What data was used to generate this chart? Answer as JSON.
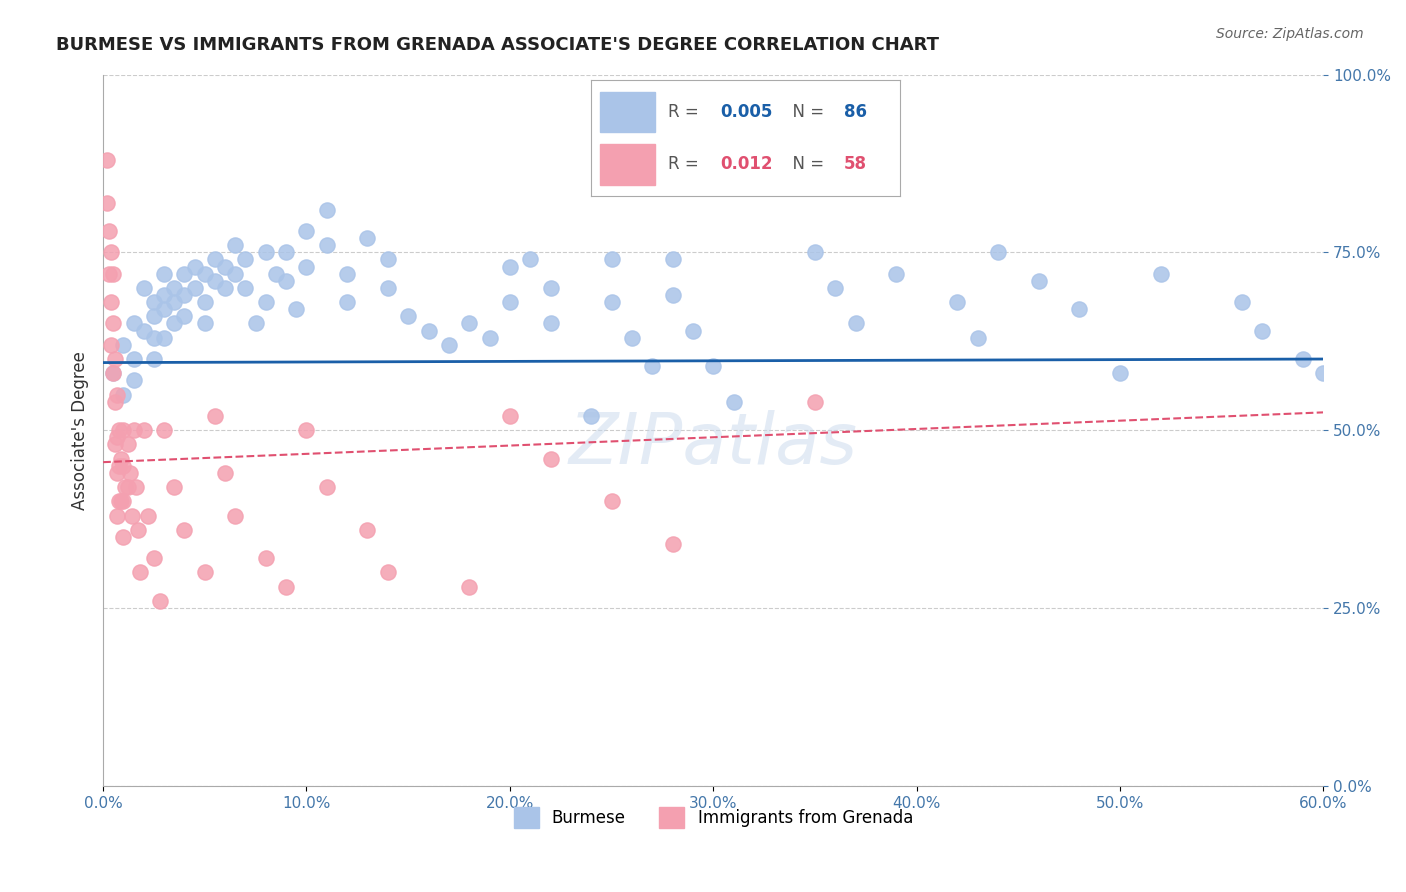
{
  "title": "BURMESE VS IMMIGRANTS FROM GRENADA ASSOCIATE'S DEGREE CORRELATION CHART",
  "source": "Source: ZipAtlas.com",
  "ylabel": "Associate's Degree",
  "xlabel_ticks": [
    "0.0%",
    "10.0%",
    "20.0%",
    "30.0%",
    "40.0%",
    "50.0%",
    "60.0%"
  ],
  "xlabel_vals": [
    0,
    0.1,
    0.2,
    0.3,
    0.4,
    0.5,
    0.6
  ],
  "ytick_labels": [
    "0.0%",
    "25.0%",
    "50.0%",
    "75.0%",
    "100.0%"
  ],
  "ytick_vals": [
    0,
    0.25,
    0.5,
    0.75,
    1.0
  ],
  "xlim": [
    0,
    0.6
  ],
  "ylim": [
    0,
    1.0
  ],
  "legend": {
    "blue_r": "0.005",
    "blue_n": "86",
    "pink_r": "0.012",
    "pink_n": "58"
  },
  "blue_scatter_x": [
    0.005,
    0.01,
    0.01,
    0.015,
    0.015,
    0.015,
    0.02,
    0.02,
    0.025,
    0.025,
    0.025,
    0.025,
    0.03,
    0.03,
    0.03,
    0.03,
    0.035,
    0.035,
    0.035,
    0.04,
    0.04,
    0.04,
    0.045,
    0.045,
    0.05,
    0.05,
    0.05,
    0.055,
    0.055,
    0.06,
    0.06,
    0.065,
    0.065,
    0.07,
    0.07,
    0.075,
    0.08,
    0.08,
    0.085,
    0.09,
    0.09,
    0.095,
    0.1,
    0.1,
    0.11,
    0.11,
    0.12,
    0.12,
    0.13,
    0.14,
    0.14,
    0.15,
    0.16,
    0.17,
    0.18,
    0.19,
    0.2,
    0.2,
    0.21,
    0.22,
    0.22,
    0.24,
    0.25,
    0.25,
    0.26,
    0.27,
    0.28,
    0.28,
    0.29,
    0.3,
    0.31,
    0.35,
    0.36,
    0.37,
    0.39,
    0.42,
    0.43,
    0.44,
    0.46,
    0.48,
    0.5,
    0.52,
    0.56,
    0.57,
    0.59,
    0.6
  ],
  "blue_scatter_y": [
    0.58,
    0.62,
    0.55,
    0.65,
    0.6,
    0.57,
    0.7,
    0.64,
    0.68,
    0.66,
    0.63,
    0.6,
    0.72,
    0.69,
    0.67,
    0.63,
    0.7,
    0.68,
    0.65,
    0.72,
    0.69,
    0.66,
    0.73,
    0.7,
    0.72,
    0.68,
    0.65,
    0.74,
    0.71,
    0.73,
    0.7,
    0.76,
    0.72,
    0.74,
    0.7,
    0.65,
    0.75,
    0.68,
    0.72,
    0.75,
    0.71,
    0.67,
    0.78,
    0.73,
    0.81,
    0.76,
    0.72,
    0.68,
    0.77,
    0.74,
    0.7,
    0.66,
    0.64,
    0.62,
    0.65,
    0.63,
    0.73,
    0.68,
    0.74,
    0.7,
    0.65,
    0.52,
    0.74,
    0.68,
    0.63,
    0.59,
    0.74,
    0.69,
    0.64,
    0.59,
    0.54,
    0.75,
    0.7,
    0.65,
    0.72,
    0.68,
    0.63,
    0.75,
    0.71,
    0.67,
    0.58,
    0.72,
    0.68,
    0.64,
    0.6,
    0.58
  ],
  "pink_scatter_x": [
    0.002,
    0.002,
    0.003,
    0.003,
    0.004,
    0.004,
    0.004,
    0.005,
    0.005,
    0.005,
    0.006,
    0.006,
    0.006,
    0.007,
    0.007,
    0.007,
    0.007,
    0.008,
    0.008,
    0.008,
    0.009,
    0.009,
    0.01,
    0.01,
    0.01,
    0.01,
    0.011,
    0.012,
    0.012,
    0.013,
    0.014,
    0.015,
    0.016,
    0.017,
    0.018,
    0.02,
    0.022,
    0.025,
    0.028,
    0.03,
    0.035,
    0.04,
    0.05,
    0.055,
    0.06,
    0.065,
    0.08,
    0.09,
    0.1,
    0.11,
    0.13,
    0.14,
    0.18,
    0.2,
    0.22,
    0.25,
    0.28,
    0.35
  ],
  "pink_scatter_y": [
    0.88,
    0.82,
    0.78,
    0.72,
    0.75,
    0.68,
    0.62,
    0.72,
    0.65,
    0.58,
    0.6,
    0.54,
    0.48,
    0.55,
    0.49,
    0.44,
    0.38,
    0.5,
    0.45,
    0.4,
    0.46,
    0.4,
    0.5,
    0.45,
    0.4,
    0.35,
    0.42,
    0.48,
    0.42,
    0.44,
    0.38,
    0.5,
    0.42,
    0.36,
    0.3,
    0.5,
    0.38,
    0.32,
    0.26,
    0.5,
    0.42,
    0.36,
    0.3,
    0.52,
    0.44,
    0.38,
    0.32,
    0.28,
    0.5,
    0.42,
    0.36,
    0.3,
    0.28,
    0.52,
    0.46,
    0.4,
    0.34,
    0.54
  ],
  "blue_line_x": [
    0.0,
    0.6
  ],
  "blue_line_y": [
    0.595,
    0.6
  ],
  "pink_line_x": [
    0.0,
    0.6
  ],
  "pink_line_y": [
    0.455,
    0.525
  ],
  "watermark": "ZIPatlas",
  "blue_color": "#aac4e8",
  "pink_color": "#f4a0b0",
  "blue_line_color": "#1a5fa8",
  "pink_line_color": "#e05070",
  "background_color": "#ffffff",
  "grid_color": "#cccccc"
}
